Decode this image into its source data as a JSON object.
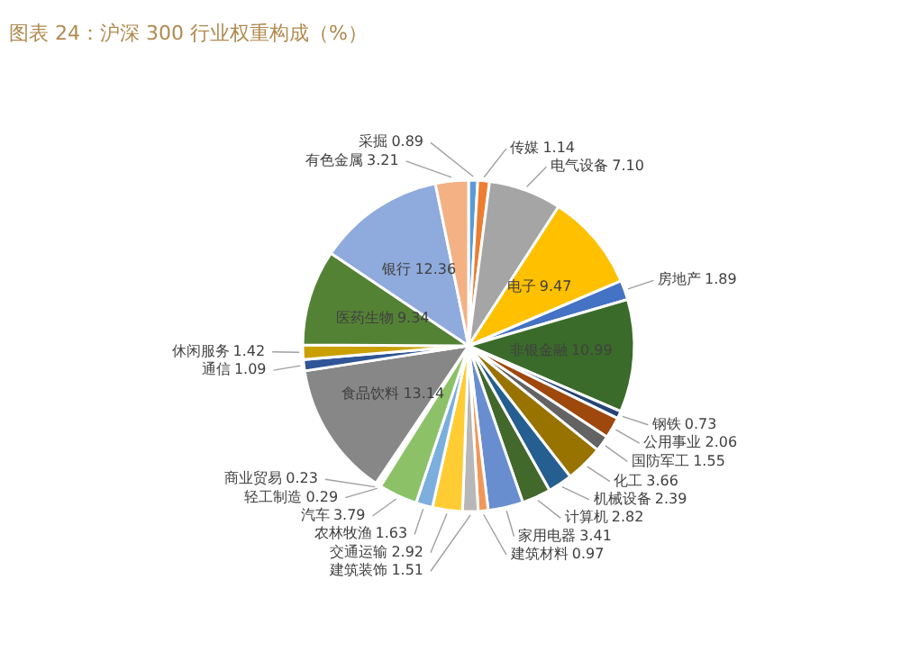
{
  "chart_data": {
    "type": "pie",
    "title": "图表 24：沪深 300 行业权重构成（%）",
    "categories": [
      "采掘",
      "传媒",
      "电气设备",
      "电子",
      "房地产",
      "非银金融",
      "钢铁",
      "公用事业",
      "国防军工",
      "化工",
      "机械设备",
      "计算机",
      "家用电器",
      "建筑材料",
      "建筑装饰",
      "交通运输",
      "农林牧渔",
      "汽车",
      "轻工制造",
      "商业贸易",
      "食品饮料",
      "通信",
      "休闲服务",
      "医药生物",
      "银行",
      "有色金属"
    ],
    "values": [
      0.89,
      1.14,
      7.1,
      9.47,
      1.89,
      10.99,
      0.73,
      2.06,
      1.55,
      3.66,
      2.39,
      2.82,
      3.41,
      0.97,
      1.51,
      2.92,
      1.63,
      3.79,
      0.29,
      0.23,
      13.14,
      1.09,
      1.42,
      9.34,
      12.36,
      3.21
    ],
    "colors": [
      "#5b9bd5",
      "#ed7d31",
      "#a5a5a5",
      "#ffc000",
      "#4472c4",
      "#3a6b2a",
      "#264478",
      "#9e480e",
      "#636363",
      "#997300",
      "#255e91",
      "#43682b",
      "#698ed0",
      "#f1975a",
      "#b7b7b7",
      "#ffcd33",
      "#7cafdd",
      "#8cc168",
      "#f4b183",
      "#a9a9a9",
      "#878787",
      "#2f5597",
      "#c9a000",
      "#548235",
      "#8faadc",
      "#f4b183"
    ],
    "value_labels": [
      "0.89",
      "1.14",
      "7.10",
      "9.47",
      "1.89",
      "10.99",
      "0.73",
      "2.06",
      "1.55",
      "3.66",
      "2.39",
      "2.82",
      "3.41",
      "0.97",
      "1.51",
      "2.92",
      "1.63",
      "3.79",
      "0.29",
      "0.23",
      "13.14",
      "1.09",
      "1.42",
      "9.34",
      "12.36",
      "3.21"
    ],
    "data_labels": true,
    "legend": false
  }
}
